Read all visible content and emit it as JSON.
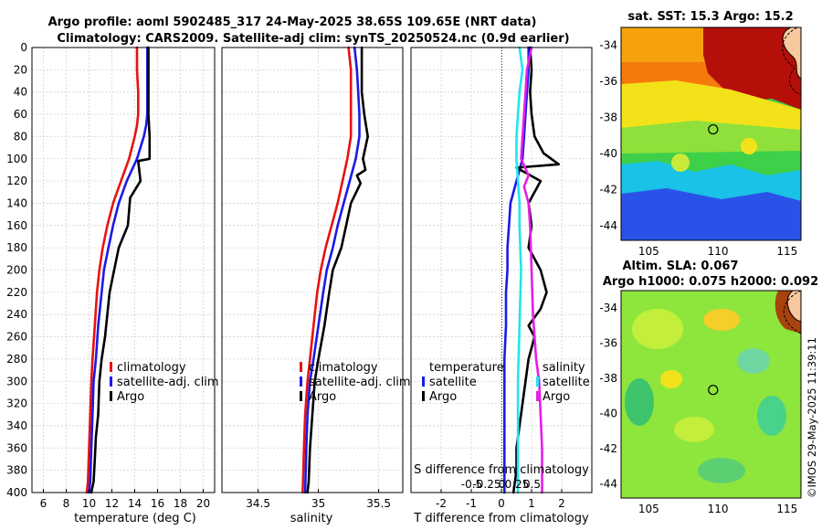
{
  "figure": {
    "title_line1": "Argo profile: aoml 5902485_317 24-May-2025 38.65S 109.65E (NRT data)",
    "title_line2": "Climatology: CARS2009. Satellite-adj clim: synTS_20250524.nc (0.9d earlier)",
    "stamp": "©IMOS 29-May-2025 11:39:11",
    "colors": {
      "climatology": "#e8120f",
      "satellite": "#1a1ae6",
      "argo": "#000000",
      "cyan": "#1ee6f0",
      "magenta": "#e61ee6"
    }
  },
  "legend": {
    "climatology": "climatology",
    "satellite_adj": "satellite-adj. clim",
    "argo": "Argo",
    "temperature_header": "temperature",
    "salinity_header": "salinity",
    "satellite": "satellite"
  },
  "chart_data": [
    {
      "type": "line",
      "id": "temperature",
      "xlabel": "temperature (deg C)",
      "ylabel": "",
      "xlim": [
        5,
        21
      ],
      "ylim": [
        400,
        0
      ],
      "xticks": [
        6,
        8,
        10,
        12,
        14,
        16,
        18,
        20
      ],
      "yticks": [
        0,
        20,
        40,
        60,
        80,
        100,
        120,
        140,
        160,
        180,
        200,
        220,
        240,
        260,
        280,
        300,
        320,
        340,
        360,
        380,
        400
      ],
      "grid": true,
      "series": [
        {
          "name": "climatology",
          "color_key": "climatology",
          "x": [
            14.2,
            14.2,
            14.3,
            14.3,
            14.2,
            14.0,
            13.5,
            12.8,
            12.1,
            11.6,
            11.2,
            10.9,
            10.7,
            10.5,
            10.3,
            10.2,
            10.1,
            10.0,
            9.9,
            9.8
          ],
          "y": [
            0,
            20,
            40,
            60,
            70,
            80,
            100,
            120,
            140,
            160,
            180,
            200,
            220,
            250,
            280,
            300,
            330,
            360,
            390,
            400
          ]
        },
        {
          "name": "satellite-adj. clim",
          "color_key": "satellite",
          "x": [
            15.1,
            15.1,
            15.1,
            15.1,
            15.0,
            14.8,
            14.2,
            13.3,
            12.6,
            12.1,
            11.7,
            11.3,
            11.1,
            10.8,
            10.6,
            10.4,
            10.3,
            10.2,
            10.1,
            10.0
          ],
          "y": [
            0,
            20,
            40,
            60,
            70,
            80,
            100,
            120,
            140,
            160,
            180,
            200,
            220,
            250,
            280,
            300,
            330,
            360,
            390,
            400
          ]
        },
        {
          "name": "Argo",
          "color_key": "argo",
          "x": [
            15.2,
            15.2,
            15.2,
            15.2,
            15.3,
            15.3,
            14.3,
            14.5,
            13.6,
            13.4,
            12.6,
            12.2,
            11.8,
            11.6,
            11.4,
            11.1,
            10.9,
            10.8,
            10.6,
            10.5,
            10.4,
            10.2
          ],
          "y": [
            0,
            20,
            40,
            60,
            80,
            100,
            102,
            120,
            135,
            160,
            180,
            200,
            220,
            240,
            260,
            280,
            300,
            330,
            350,
            370,
            390,
            400
          ]
        }
      ]
    },
    {
      "type": "line",
      "id": "salinity",
      "xlabel": "salinity",
      "ylabel": "",
      "xlim": [
        34.2,
        35.7
      ],
      "ylim": [
        400,
        0
      ],
      "xticks": [
        34.5,
        35,
        35.5
      ],
      "grid": true,
      "series": [
        {
          "name": "climatology",
          "color_key": "climatology",
          "x": [
            35.25,
            35.27,
            35.27,
            35.27,
            35.27,
            35.24,
            35.2,
            35.16,
            35.11,
            35.06,
            35.02,
            34.99,
            34.96,
            34.93,
            34.91,
            34.89,
            34.88,
            34.87
          ],
          "y": [
            0,
            20,
            40,
            60,
            80,
            100,
            120,
            140,
            160,
            180,
            200,
            220,
            250,
            280,
            300,
            330,
            360,
            400
          ]
        },
        {
          "name": "satellite-adj. clim",
          "color_key": "satellite",
          "x": [
            35.3,
            35.32,
            35.33,
            35.34,
            35.34,
            35.31,
            35.26,
            35.21,
            35.16,
            35.12,
            35.07,
            35.04,
            35.0,
            34.96,
            34.93,
            34.91,
            34.9,
            34.89
          ],
          "y": [
            0,
            20,
            40,
            60,
            80,
            100,
            120,
            140,
            160,
            180,
            200,
            220,
            250,
            280,
            300,
            330,
            360,
            400
          ]
        },
        {
          "name": "Argo",
          "color_key": "argo",
          "x": [
            35.36,
            35.36,
            35.36,
            35.38,
            35.41,
            35.37,
            35.39,
            35.32,
            35.35,
            35.27,
            35.23,
            35.19,
            35.12,
            35.09,
            35.05,
            35.0,
            34.97,
            34.95,
            34.93,
            34.92,
            34.91
          ],
          "y": [
            0,
            20,
            40,
            60,
            80,
            100,
            110,
            115,
            122,
            140,
            160,
            180,
            200,
            220,
            250,
            280,
            300,
            330,
            360,
            390,
            400
          ]
        }
      ]
    },
    {
      "type": "line",
      "id": "difference",
      "xlabel": "T difference from climatology",
      "xlabel_top": "S difference from climatology",
      "ylabel": "",
      "xlim": [
        -3,
        3
      ],
      "ylim": [
        400,
        0
      ],
      "xticks": [
        -2,
        -1,
        0,
        1,
        2
      ],
      "xticks_top": [
        -0.5,
        -0.25,
        0,
        0.25,
        0.5
      ],
      "xticks_top_labels": [
        "-0.5",
        "-0.25",
        "0",
        "0.25",
        "0.5"
      ],
      "grid": true,
      "series": [
        {
          "name": "temperature satellite",
          "color_key": "satellite",
          "x": [
            0.9,
            0.9,
            0.85,
            0.8,
            0.75,
            0.7,
            0.5,
            0.3,
            0.25,
            0.2,
            0.2,
            0.15,
            0.15,
            0.1,
            0.1,
            0.1,
            0.1,
            0.1
          ],
          "y": [
            0,
            20,
            40,
            60,
            80,
            100,
            120,
            140,
            160,
            180,
            200,
            220,
            250,
            280,
            300,
            330,
            360,
            400
          ]
        },
        {
          "name": "temperature Argo",
          "color_key": "argo",
          "x": [
            0.95,
            1.0,
            0.95,
            1.0,
            1.1,
            1.4,
            1.9,
            0.5,
            1.3,
            0.9,
            1.0,
            0.9,
            1.3,
            1.4,
            1.5,
            1.3,
            0.9,
            1.1,
            0.9,
            0.8,
            0.7,
            0.6,
            0.5,
            0.5,
            0.4
          ],
          "y": [
            0,
            20,
            40,
            60,
            80,
            95,
            105,
            108,
            120,
            140,
            160,
            180,
            200,
            210,
            220,
            235,
            250,
            260,
            280,
            300,
            320,
            340,
            360,
            380,
            400
          ]
        },
        {
          "name": "salinity satellite",
          "color_key": "cyan",
          "x": [
            0.6,
            0.7,
            0.6,
            0.55,
            0.5,
            0.5,
            0.55,
            0.6,
            0.6,
            0.65,
            0.6,
            0.55,
            0.55
          ],
          "y": [
            0,
            20,
            40,
            60,
            80,
            100,
            120,
            140,
            160,
            200,
            250,
            300,
            400
          ]
        },
        {
          "name": "salinity Argo",
          "color_key": "magenta",
          "x": [
            1.0,
            0.85,
            0.75,
            0.65,
            0.9,
            0.75,
            0.9,
            0.95,
            1.0,
            1.05,
            1.15,
            1.25,
            1.3,
            1.35,
            1.35
          ],
          "y": [
            0,
            20,
            60,
            100,
            115,
            125,
            140,
            160,
            200,
            240,
            280,
            300,
            330,
            360,
            400
          ]
        }
      ]
    },
    {
      "type": "heatmap",
      "id": "sst_map",
      "title": "sat. SST: 15.3 Argo: 15.2",
      "xlim": [
        103,
        116
      ],
      "ylim": [
        -44.8,
        -33
      ],
      "xticks": [
        105,
        110,
        115
      ],
      "yticks": [
        -34,
        -36,
        -38,
        -40,
        -42,
        -44
      ],
      "marker": {
        "lon": 109.65,
        "lat": -38.65
      }
    },
    {
      "type": "heatmap",
      "id": "sla_map",
      "title_line1": "Altim. SLA: 0.067",
      "title_line2": "Argo h1000: 0.075 h2000: 0.092",
      "xlim": [
        103,
        116
      ],
      "ylim": [
        -44.8,
        -33
      ],
      "xticks": [
        105,
        110,
        115
      ],
      "yticks": [
        -34,
        -36,
        -38,
        -40,
        -42,
        -44
      ],
      "marker": {
        "lon": 109.65,
        "lat": -38.65
      }
    }
  ]
}
